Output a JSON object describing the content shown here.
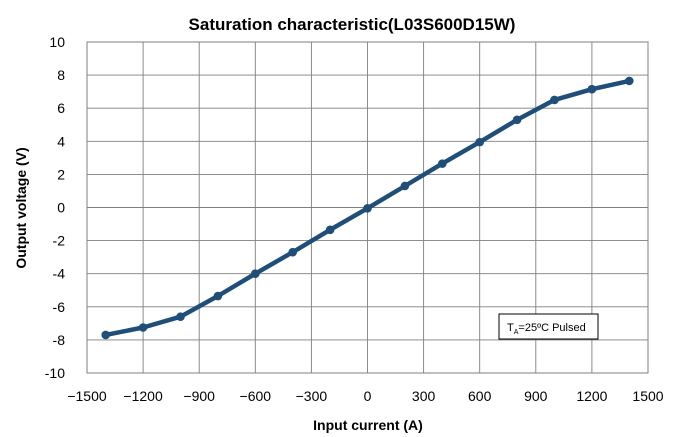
{
  "colors": {
    "series": "#1f4e79",
    "grid": "#7f7f7f"
  },
  "chart_data": {
    "type": "line",
    "title": "Saturation characteristic(L03S600D15W)",
    "xlabel": "Input current (A)",
    "ylabel": "Output voltage (V)",
    "xlim": [
      -1500,
      1500
    ],
    "ylim": [
      -10,
      10
    ],
    "x_ticks": [
      -1500,
      -1200,
      -900,
      -600,
      -300,
      0,
      300,
      600,
      900,
      1200,
      1500
    ],
    "x_tick_labels": [
      "−1500",
      "−1200",
      "−900",
      "−600",
      "−300",
      "0",
      "300",
      "600",
      "900",
      "1200",
      "1500"
    ],
    "y_ticks": [
      -10,
      -8,
      -6,
      -4,
      -2,
      0,
      2,
      4,
      6,
      8,
      10
    ],
    "y_tick_labels": [
      "-10",
      "-8",
      "-6",
      "-4",
      "-2",
      "0",
      "2",
      "4",
      "6",
      "8",
      "10"
    ],
    "grid": true,
    "series": [
      {
        "x": [
          -1400,
          -1200,
          -1000,
          -800,
          -600,
          -400,
          -200,
          0,
          200,
          400,
          600,
          800,
          1000,
          1200,
          1400
        ],
        "y": [
          -7.7,
          -7.25,
          -6.6,
          -5.35,
          -4.0,
          -2.7,
          -1.35,
          -0.05,
          1.3,
          2.65,
          3.95,
          5.3,
          6.5,
          7.15,
          7.65
        ]
      }
    ],
    "annotation": {
      "main": "T",
      "sub": "A",
      "rest": "=25ºC Pulsed"
    }
  }
}
